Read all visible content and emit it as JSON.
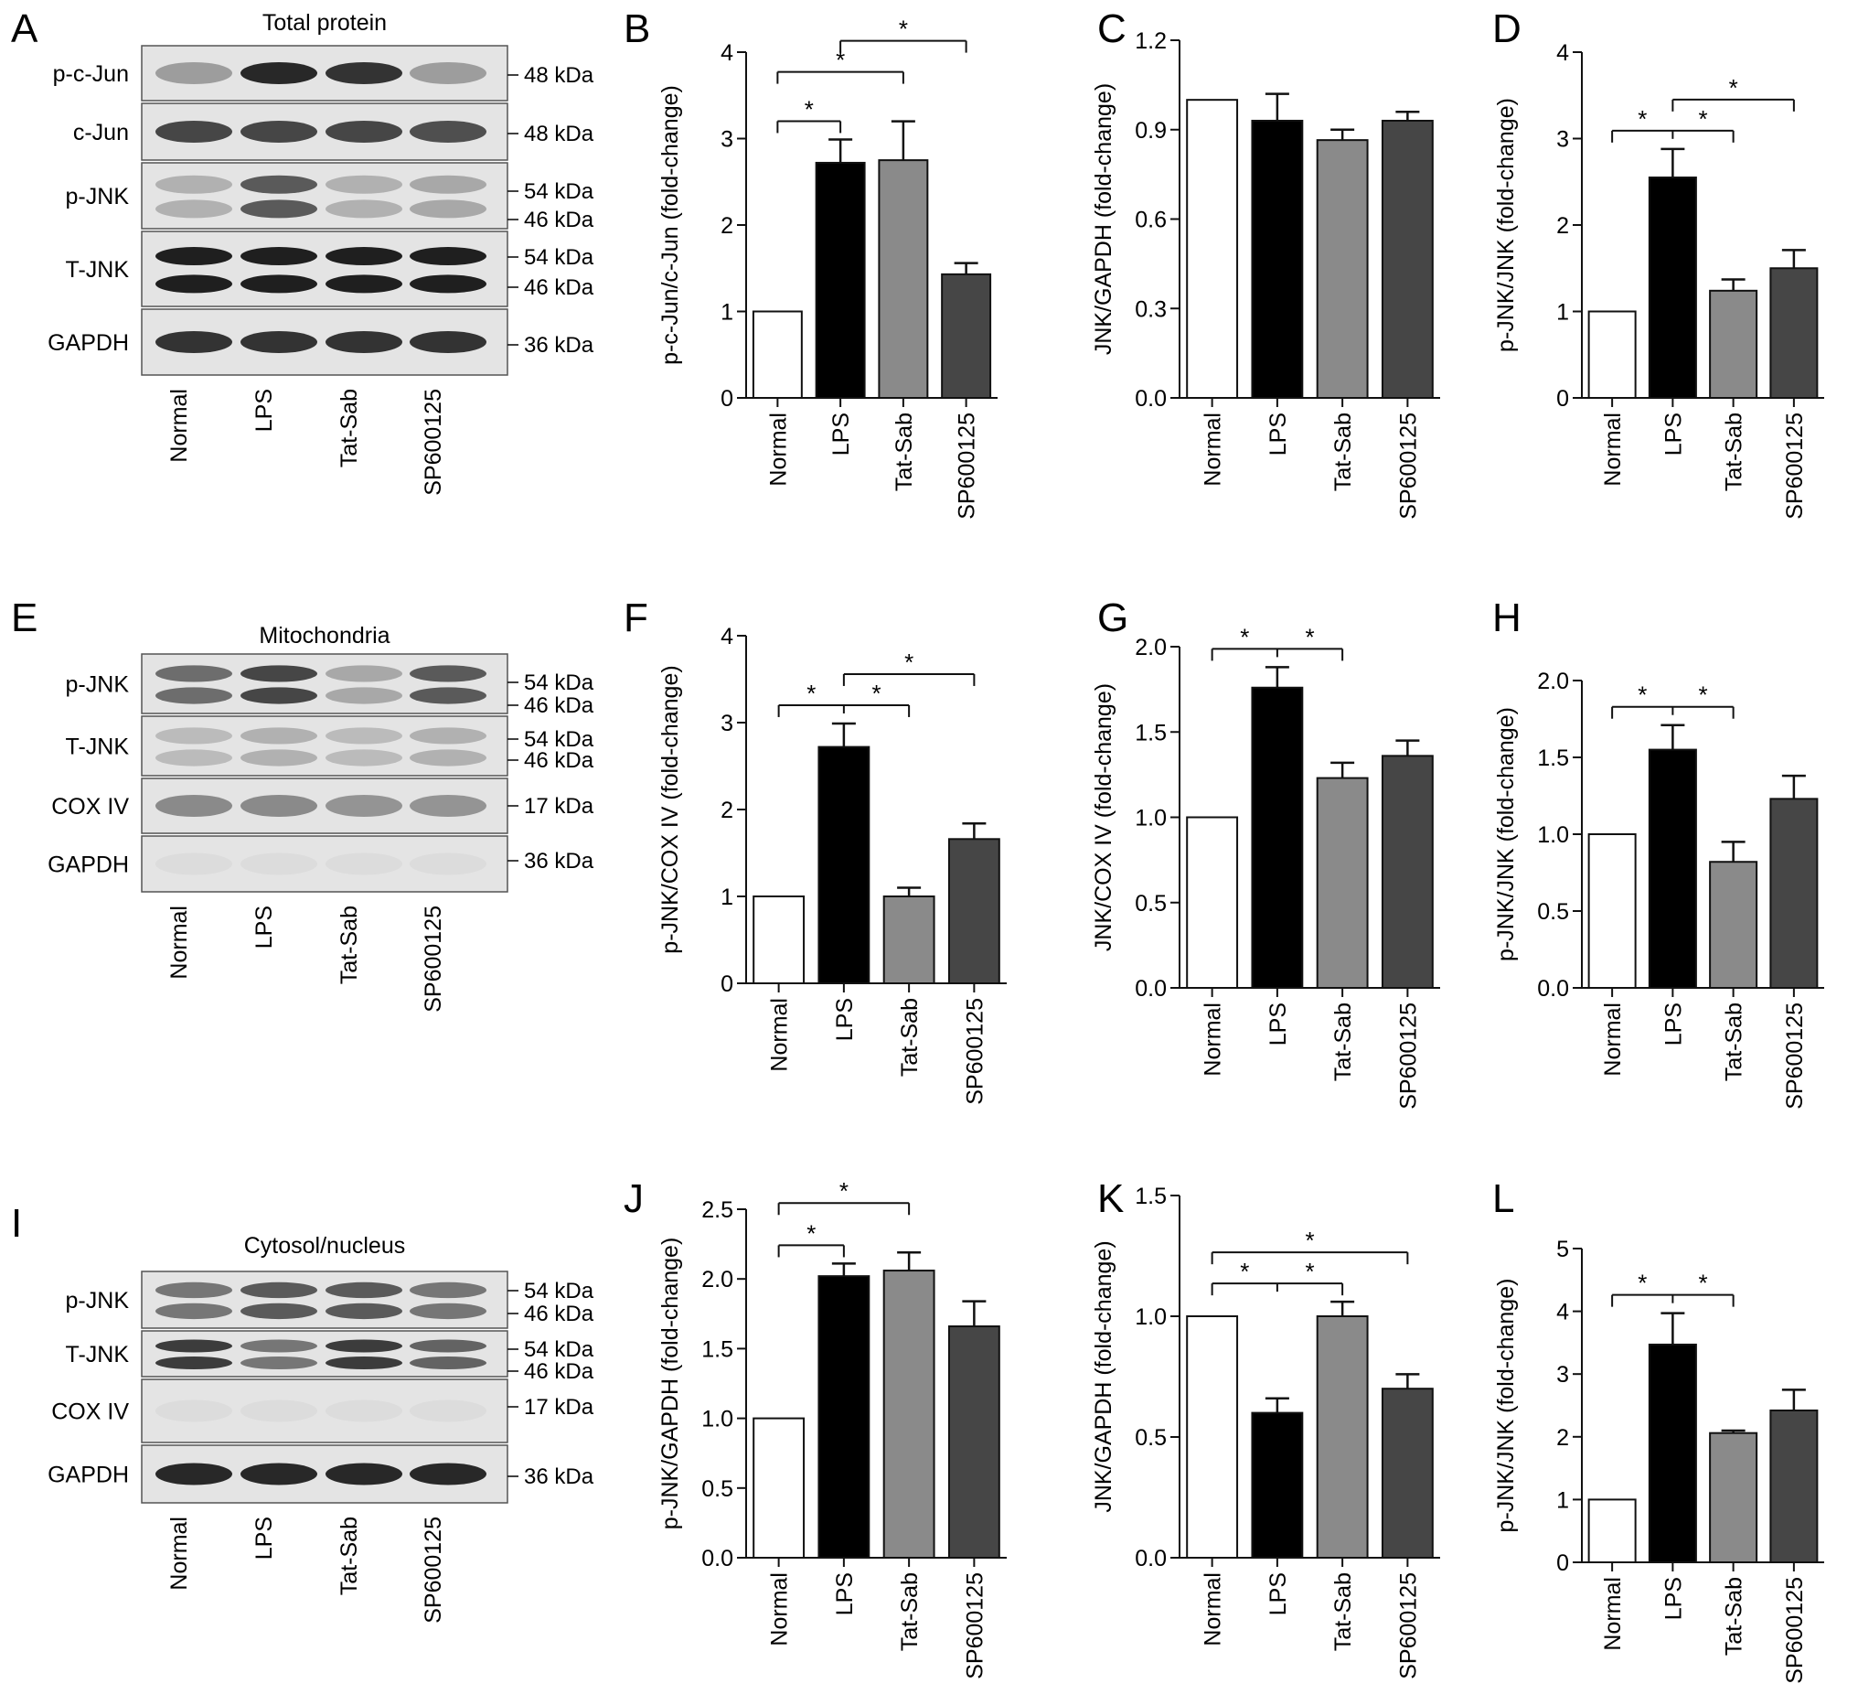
{
  "figure": {
    "blots": [
      {
        "letter": "A",
        "title": "Total protein",
        "lanes": [
          "Normal",
          "LPS",
          "Tat-Sab",
          "SP600125"
        ],
        "rows": [
          {
            "label": "p-c-Jun",
            "mw": [
              "48 kDa"
            ],
            "intensity": [
              0.35,
              0.95,
              0.9,
              0.35
            ]
          },
          {
            "label": "c-Jun",
            "mw": [
              "48 kDa"
            ],
            "intensity": [
              0.8,
              0.8,
              0.8,
              0.75
            ]
          },
          {
            "label": "p-JNK",
            "mw": [
              "54 kDa",
              "46 kDa"
            ],
            "intensity": [
              0.25,
              0.7,
              0.25,
              0.3
            ]
          },
          {
            "label": "T-JNK",
            "mw": [
              "54 kDa",
              "46 kDa"
            ],
            "intensity": [
              1,
              1,
              1,
              1
            ]
          },
          {
            "label": "GAPDH",
            "mw": [
              "36 kDa"
            ],
            "intensity": [
              0.9,
              0.9,
              0.9,
              0.9
            ]
          }
        ]
      },
      {
        "letter": "E",
        "title": "Mitochondria",
        "lanes": [
          "Normal",
          "LPS",
          "Tat-Sab",
          "SP600125"
        ],
        "rows": [
          {
            "label": "p-JNK",
            "mw": [
              "54 kDa",
              "46 kDa"
            ],
            "intensity": [
              0.6,
              0.8,
              0.3,
              0.7
            ]
          },
          {
            "label": "T-JNK",
            "mw": [
              "54 kDa",
              "46 kDa"
            ],
            "intensity": [
              0.2,
              0.25,
              0.2,
              0.25
            ]
          },
          {
            "label": "COX IV",
            "mw": [
              "17 kDa"
            ],
            "intensity": [
              0.45,
              0.45,
              0.4,
              0.4
            ]
          },
          {
            "label": "GAPDH",
            "mw": [
              "36 kDa"
            ],
            "intensity": [
              0.03,
              0.03,
              0.03,
              0.03
            ]
          }
        ]
      },
      {
        "letter": "I",
        "title": "Cytosol/nucleus",
        "lanes": [
          "Normal",
          "LPS",
          "Tat-Sab",
          "SP600125"
        ],
        "rows": [
          {
            "label": "p-JNK",
            "mw": [
              "54 kDa",
              "46 kDa"
            ],
            "intensity": [
              0.55,
              0.7,
              0.7,
              0.55
            ]
          },
          {
            "label": "T-JNK",
            "mw": [
              "54 kDa",
              "46 kDa"
            ],
            "intensity": [
              0.85,
              0.55,
              0.85,
              0.65
            ]
          },
          {
            "label": "COX IV",
            "mw": [
              "17 kDa"
            ],
            "intensity": [
              0.03,
              0.03,
              0.03,
              0.03
            ]
          },
          {
            "label": "GAPDH",
            "mw": [
              "36 kDa"
            ],
            "intensity": [
              0.95,
              0.95,
              0.95,
              0.95
            ]
          }
        ]
      }
    ]
  },
  "chart_data": [
    {
      "panel": "B",
      "type": "bar",
      "categories": [
        "Normal",
        "LPS",
        "Tat-Sab",
        "SP600125"
      ],
      "values": [
        1.0,
        2.72,
        2.75,
        1.43
      ],
      "errors": [
        0,
        0.27,
        0.45,
        0.13
      ],
      "ylabel": "p-c-Jun/c-Jun (fold-change)",
      "ylim": [
        0,
        4
      ],
      "yticks": [
        "0",
        "1",
        "2",
        "3",
        "4"
      ],
      "colors": [
        "#ffffff",
        "#000000",
        "#8a8a8a",
        "#464646"
      ],
      "significance": [
        {
          "from": 0,
          "to": 1,
          "label": "*"
        },
        {
          "from": 0,
          "to": 2,
          "label": "*"
        },
        {
          "from": 1,
          "to": 3,
          "label": "*"
        }
      ]
    },
    {
      "panel": "C",
      "type": "bar",
      "categories": [
        "Normal",
        "LPS",
        "Tat-Sab",
        "SP600125"
      ],
      "values": [
        1.0,
        0.93,
        0.865,
        0.93
      ],
      "errors": [
        0,
        0.09,
        0.035,
        0.03
      ],
      "ylabel": "JNK/GAPDH (fold-change)",
      "ylim": [
        0,
        1.2
      ],
      "yticks": [
        "0.0",
        "0.3",
        "0.6",
        "0.9",
        "1.2"
      ],
      "colors": [
        "#ffffff",
        "#000000",
        "#8a8a8a",
        "#464646"
      ],
      "significance": []
    },
    {
      "panel": "D",
      "type": "bar",
      "categories": [
        "Normal",
        "LPS",
        "Tat-Sab",
        "SP600125"
      ],
      "values": [
        1.0,
        2.55,
        1.24,
        1.5
      ],
      "errors": [
        0,
        0.33,
        0.13,
        0.21
      ],
      "ylabel": "p-JNK/JNK (fold-change)",
      "ylim": [
        0,
        4
      ],
      "yticks": [
        "0",
        "1",
        "2",
        "3",
        "4"
      ],
      "colors": [
        "#ffffff",
        "#000000",
        "#8a8a8a",
        "#464646"
      ],
      "significance": [
        {
          "from": 0,
          "to": 2,
          "label": "*",
          "split": 1
        },
        {
          "from": 1,
          "to": 3,
          "label": "*"
        }
      ]
    },
    {
      "panel": "F",
      "type": "bar",
      "categories": [
        "Normal",
        "LPS",
        "Tat-Sab",
        "SP600125"
      ],
      "values": [
        1.0,
        2.72,
        1.0,
        1.66
      ],
      "errors": [
        0,
        0.27,
        0.1,
        0.18
      ],
      "ylabel": "p-JNK/COX IV (fold-change)",
      "ylim": [
        0,
        4
      ],
      "yticks": [
        "0",
        "1",
        "2",
        "3",
        "4"
      ],
      "colors": [
        "#ffffff",
        "#000000",
        "#8a8a8a",
        "#464646"
      ],
      "significance": [
        {
          "from": 0,
          "to": 2,
          "label": "*",
          "split": 1
        },
        {
          "from": 1,
          "to": 3,
          "label": "*"
        }
      ]
    },
    {
      "panel": "G",
      "type": "bar",
      "categories": [
        "Normal",
        "LPS",
        "Tat-Sab",
        "SP600125"
      ],
      "values": [
        1.0,
        1.76,
        1.23,
        1.36
      ],
      "errors": [
        0,
        0.12,
        0.09,
        0.09
      ],
      "ylabel": "JNK/COX IV (fold-change)",
      "ylim": [
        0,
        2.0
      ],
      "yticks": [
        "0.0",
        "0.5",
        "1.0",
        "1.5",
        "2.0"
      ],
      "colors": [
        "#ffffff",
        "#000000",
        "#8a8a8a",
        "#464646"
      ],
      "significance": [
        {
          "from": 0,
          "to": 2,
          "label": "*",
          "split": 1
        }
      ]
    },
    {
      "panel": "H",
      "type": "bar",
      "categories": [
        "Normal",
        "LPS",
        "Tat-Sab",
        "SP600125"
      ],
      "values": [
        1.0,
        1.55,
        0.82,
        1.23
      ],
      "errors": [
        0,
        0.16,
        0.13,
        0.15
      ],
      "ylabel": "p-JNK/JNK (fold-change)",
      "ylim": [
        0,
        2.0
      ],
      "yticks": [
        "0.0",
        "0.5",
        "1.0",
        "1.5",
        "2.0"
      ],
      "colors": [
        "#ffffff",
        "#000000",
        "#8a8a8a",
        "#464646"
      ],
      "significance": [
        {
          "from": 0,
          "to": 2,
          "label": "*",
          "split": 1
        }
      ]
    },
    {
      "panel": "J",
      "type": "bar",
      "categories": [
        "Normal",
        "LPS",
        "Tat-Sab",
        "SP600125"
      ],
      "values": [
        1.0,
        2.02,
        2.06,
        1.66
      ],
      "errors": [
        0,
        0.09,
        0.13,
        0.18
      ],
      "ylabel": "p-JNK/GAPDH (fold-change)",
      "ylim": [
        0,
        2.5
      ],
      "yticks": [
        "0.0",
        "0.5",
        "1.0",
        "1.5",
        "2.0",
        "2.5"
      ],
      "colors": [
        "#ffffff",
        "#000000",
        "#8a8a8a",
        "#464646"
      ],
      "significance": [
        {
          "from": 0,
          "to": 1,
          "label": "*"
        },
        {
          "from": 0,
          "to": 2,
          "label": "*"
        }
      ]
    },
    {
      "panel": "K",
      "type": "bar",
      "categories": [
        "Normal",
        "LPS",
        "Tat-Sab",
        "SP600125"
      ],
      "values": [
        1.0,
        0.6,
        1.0,
        0.7
      ],
      "errors": [
        0,
        0.06,
        0.06,
        0.06
      ],
      "ylabel": "JNK/GAPDH (fold-change)",
      "ylim": [
        0,
        1.5
      ],
      "yticks": [
        "0.0",
        "0.5",
        "1.0",
        "1.5"
      ],
      "colors": [
        "#ffffff",
        "#000000",
        "#8a8a8a",
        "#464646"
      ],
      "significance": [
        {
          "from": 0,
          "to": 2,
          "label": "*",
          "split": 1
        },
        {
          "from": 0,
          "to": 3,
          "label": "*"
        }
      ]
    },
    {
      "panel": "L",
      "type": "bar",
      "categories": [
        "Normal",
        "LPS",
        "Tat-Sab",
        "SP600125"
      ],
      "values": [
        1.0,
        3.47,
        2.06,
        2.42
      ],
      "errors": [
        0,
        0.5,
        0.04,
        0.33
      ],
      "ylabel": "p-JNK/JNK (fold-change)",
      "ylim": [
        0,
        5
      ],
      "yticks": [
        "0",
        "1",
        "2",
        "3",
        "4",
        "5"
      ],
      "colors": [
        "#ffffff",
        "#000000",
        "#8a8a8a",
        "#464646"
      ],
      "significance": [
        {
          "from": 0,
          "to": 2,
          "label": "*",
          "split": 1
        }
      ]
    }
  ]
}
